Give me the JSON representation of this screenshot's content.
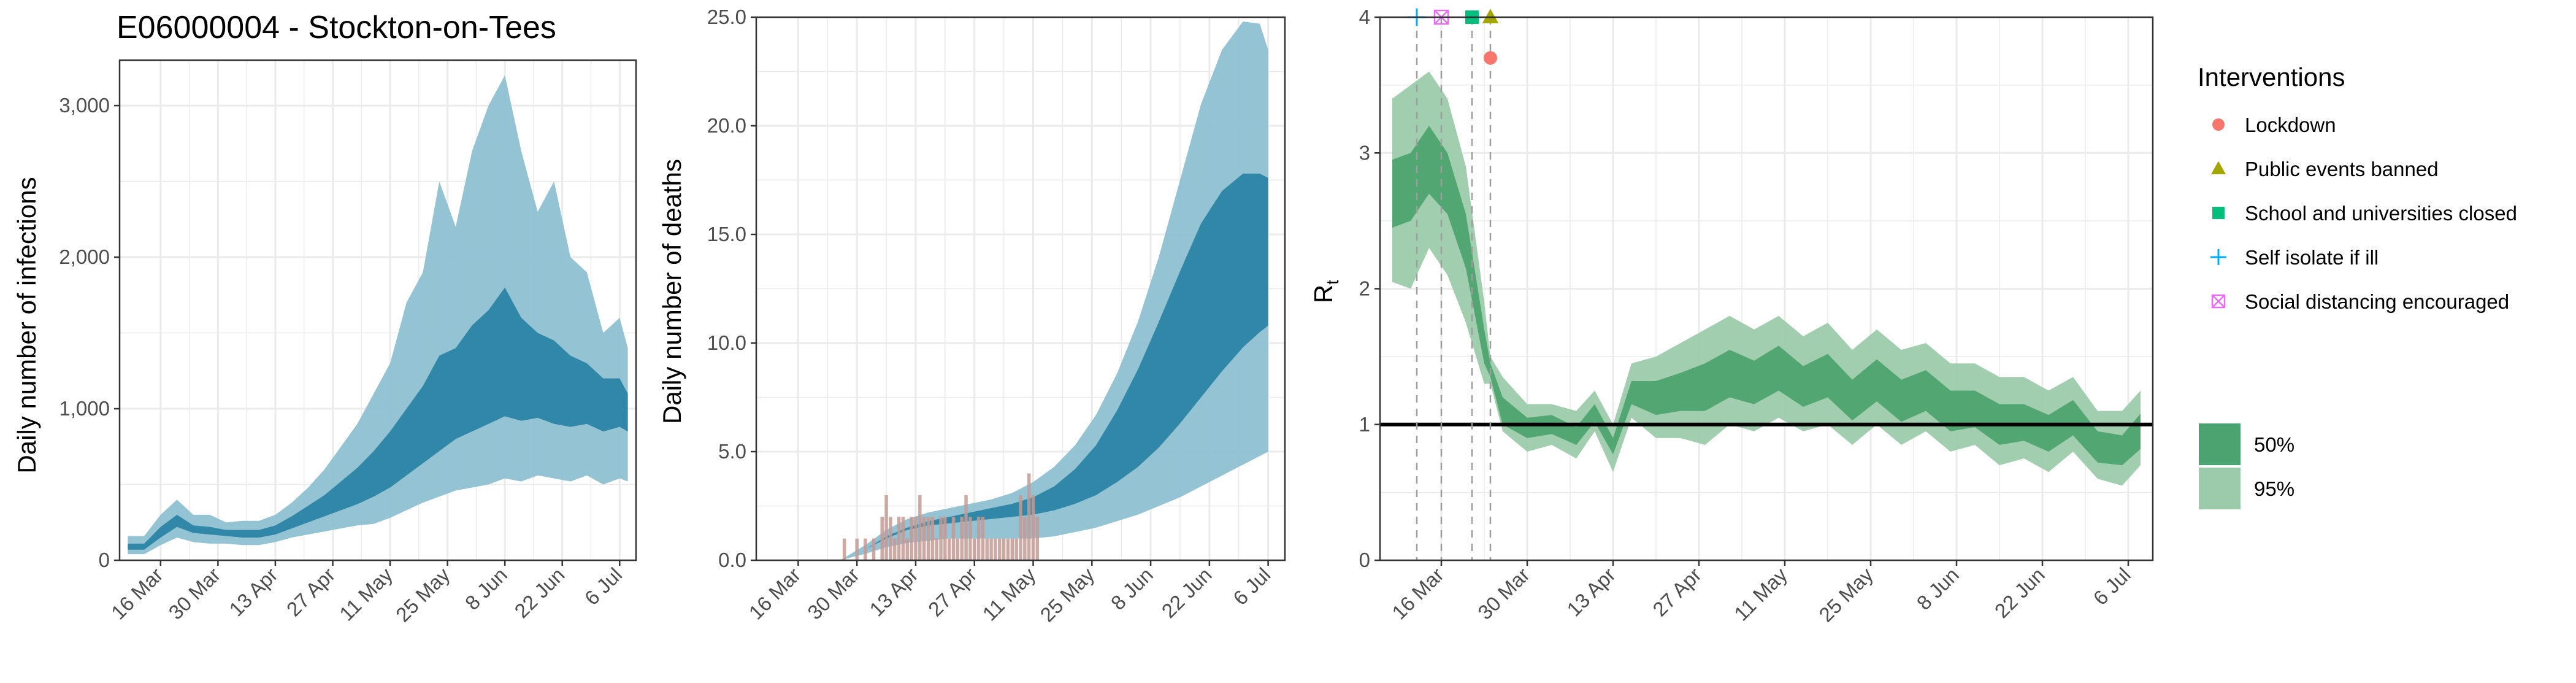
{
  "title": "E06000004 - Stockton-on-Tees",
  "date_ticks": [
    "16 Mar",
    "30 Mar",
    "13 Apr",
    "27 Apr",
    "11 May",
    "25 May",
    "8 Jun",
    "22 Jun",
    "6 Jul"
  ],
  "colors": {
    "infection_inner": "#2a84a4",
    "infection_outer": "#8ec0d2",
    "rt_inner": "#4da36f",
    "rt_outer": "#9bcbaa",
    "death_bar": "#c49a94",
    "grid": "#ebebeb",
    "lockdown": "#f8766d",
    "public_events": "#a3a500",
    "school": "#00bf7d",
    "self_isolate": "#00b0f6",
    "social_distancing": "#e76bf3"
  },
  "legend": {
    "title": "Interventions",
    "items": [
      {
        "key": "lockdown",
        "label": "Lockdown",
        "icon": "circle-icon"
      },
      {
        "key": "public_events",
        "label": "Public events banned",
        "icon": "triangle-icon"
      },
      {
        "key": "school",
        "label": "School and universities closed",
        "icon": "square-icon"
      },
      {
        "key": "self_isolate",
        "label": "Self isolate if ill",
        "icon": "plus-icon"
      },
      {
        "key": "social_distancing",
        "label": "Social distancing encouraged",
        "icon": "boxed-x-icon"
      }
    ],
    "ci_items": [
      {
        "label": "50%",
        "color": "#4da36f"
      },
      {
        "label": "95%",
        "color": "#9bcbaa"
      }
    ]
  },
  "chart_data": [
    {
      "type": "area",
      "title": "E06000004 - Stockton-on-Tees",
      "xlabel": "",
      "ylabel": "Daily number of infections",
      "ylim": [
        0,
        3300
      ],
      "yticks": [
        0,
        1000,
        2000,
        3000
      ],
      "ytick_labels": [
        "0",
        "1,000",
        "2,000",
        "3,000"
      ],
      "xlim": [
        "2020-03-06",
        "2020-07-10"
      ],
      "series": [
        {
          "band": "95%",
          "x": [
            "2020-03-08",
            "2020-03-12",
            "2020-03-16",
            "2020-03-20",
            "2020-03-24",
            "2020-03-28",
            "2020-04-01",
            "2020-04-05",
            "2020-04-09",
            "2020-04-13",
            "2020-04-17",
            "2020-04-21",
            "2020-04-25",
            "2020-04-29",
            "2020-05-03",
            "2020-05-07",
            "2020-05-11",
            "2020-05-15",
            "2020-05-19",
            "2020-05-23",
            "2020-05-27",
            "2020-05-31",
            "2020-06-04",
            "2020-06-08",
            "2020-06-12",
            "2020-06-16",
            "2020-06-20",
            "2020-06-24",
            "2020-06-28",
            "2020-07-02",
            "2020-07-06",
            "2020-07-08"
          ],
          "lower": [
            40,
            40,
            100,
            150,
            120,
            110,
            110,
            100,
            100,
            120,
            150,
            170,
            190,
            210,
            230,
            240,
            280,
            330,
            380,
            420,
            460,
            480,
            500,
            540,
            520,
            560,
            540,
            520,
            560,
            500,
            540,
            520
          ],
          "upper": [
            160,
            160,
            300,
            400,
            300,
            300,
            250,
            260,
            260,
            300,
            380,
            480,
            600,
            750,
            900,
            1100,
            1300,
            1700,
            1900,
            2500,
            2200,
            2700,
            3000,
            3200,
            2700,
            2300,
            2500,
            2000,
            1900,
            1500,
            1600,
            1400
          ]
        },
        {
          "band": "50%",
          "x": [
            "2020-03-08",
            "2020-03-12",
            "2020-03-16",
            "2020-03-20",
            "2020-03-24",
            "2020-03-28",
            "2020-04-01",
            "2020-04-05",
            "2020-04-09",
            "2020-04-13",
            "2020-04-17",
            "2020-04-21",
            "2020-04-25",
            "2020-04-29",
            "2020-05-03",
            "2020-05-07",
            "2020-05-11",
            "2020-05-15",
            "2020-05-19",
            "2020-05-23",
            "2020-05-27",
            "2020-05-31",
            "2020-06-04",
            "2020-06-08",
            "2020-06-12",
            "2020-06-16",
            "2020-06-20",
            "2020-06-24",
            "2020-06-28",
            "2020-07-02",
            "2020-07-06",
            "2020-07-08"
          ],
          "lower": [
            70,
            70,
            150,
            220,
            180,
            170,
            160,
            150,
            150,
            170,
            210,
            250,
            290,
            330,
            370,
            420,
            480,
            560,
            640,
            720,
            800,
            850,
            900,
            950,
            920,
            940,
            900,
            880,
            900,
            850,
            880,
            850
          ],
          "upper": [
            110,
            110,
            220,
            300,
            230,
            220,
            200,
            200,
            200,
            230,
            290,
            360,
            430,
            520,
            610,
            720,
            850,
            1000,
            1150,
            1350,
            1400,
            1550,
            1650,
            1800,
            1600,
            1500,
            1450,
            1350,
            1300,
            1200,
            1200,
            1100
          ]
        }
      ]
    },
    {
      "type": "area",
      "title": "",
      "xlabel": "",
      "ylabel": "Daily number of deaths",
      "ylim": [
        0,
        25
      ],
      "yticks": [
        0,
        5,
        10,
        15,
        20,
        25
      ],
      "ytick_labels": [
        "0.0",
        "5.0",
        "10.0",
        "15.0",
        "20.0",
        "25.0"
      ],
      "xlim": [
        "2020-03-06",
        "2020-07-10"
      ],
      "series": [
        {
          "band": "95%",
          "x": [
            "2020-03-26",
            "2020-04-01",
            "2020-04-06",
            "2020-04-11",
            "2020-04-16",
            "2020-04-21",
            "2020-04-26",
            "2020-05-01",
            "2020-05-06",
            "2020-05-11",
            "2020-05-16",
            "2020-05-21",
            "2020-05-26",
            "2020-05-31",
            "2020-06-05",
            "2020-06-10",
            "2020-06-15",
            "2020-06-20",
            "2020-06-25",
            "2020-06-30",
            "2020-07-04",
            "2020-07-06"
          ],
          "lower": [
            0,
            0.3,
            0.6,
            0.8,
            0.9,
            1.0,
            1.0,
            1.0,
            1.0,
            1.0,
            1.1,
            1.3,
            1.5,
            1.8,
            2.1,
            2.5,
            2.9,
            3.4,
            3.9,
            4.4,
            4.8,
            5.0
          ],
          "upper": [
            0,
            0.7,
            1.4,
            1.9,
            2.2,
            2.4,
            2.6,
            2.8,
            3.1,
            3.6,
            4.3,
            5.3,
            6.7,
            8.6,
            11.0,
            14.0,
            17.5,
            21.0,
            23.5,
            24.8,
            24.7,
            23.5
          ]
        },
        {
          "band": "50%",
          "x": [
            "2020-03-26",
            "2020-04-01",
            "2020-04-06",
            "2020-04-11",
            "2020-04-16",
            "2020-04-21",
            "2020-04-26",
            "2020-05-01",
            "2020-05-06",
            "2020-05-11",
            "2020-05-16",
            "2020-05-21",
            "2020-05-26",
            "2020-05-31",
            "2020-06-05",
            "2020-06-10",
            "2020-06-15",
            "2020-06-20",
            "2020-06-25",
            "2020-06-30",
            "2020-07-04",
            "2020-07-06"
          ],
          "lower": [
            0,
            0.5,
            1.0,
            1.4,
            1.6,
            1.7,
            1.8,
            1.9,
            2.0,
            2.1,
            2.3,
            2.6,
            3.0,
            3.6,
            4.3,
            5.2,
            6.3,
            7.5,
            8.7,
            9.8,
            10.5,
            10.8
          ],
          "upper": [
            0,
            0.5,
            1.1,
            1.5,
            1.8,
            2.0,
            2.2,
            2.4,
            2.6,
            2.9,
            3.4,
            4.2,
            5.3,
            6.9,
            8.8,
            11.0,
            13.3,
            15.5,
            17.0,
            17.8,
            17.8,
            17.6
          ]
        },
        {
          "name": "Observed deaths",
          "type": "bar",
          "x": [
            "2020-03-27",
            "2020-03-30",
            "2020-04-01",
            "2020-04-03",
            "2020-04-05",
            "2020-04-06",
            "2020-04-07",
            "2020-04-08",
            "2020-04-09",
            "2020-04-10",
            "2020-04-11",
            "2020-04-12",
            "2020-04-13",
            "2020-04-14",
            "2020-04-15",
            "2020-04-16",
            "2020-04-17",
            "2020-04-18",
            "2020-04-19",
            "2020-04-20",
            "2020-04-21",
            "2020-04-22",
            "2020-04-23",
            "2020-04-24",
            "2020-04-25",
            "2020-04-26",
            "2020-04-27",
            "2020-04-28",
            "2020-04-29",
            "2020-04-30",
            "2020-05-01",
            "2020-05-02",
            "2020-05-03",
            "2020-05-04",
            "2020-05-05",
            "2020-05-06",
            "2020-05-07",
            "2020-05-08",
            "2020-05-09",
            "2020-05-10",
            "2020-05-11",
            "2020-05-12"
          ],
          "values": [
            1,
            1,
            1,
            1,
            2,
            3,
            2,
            1,
            2,
            2,
            1,
            2,
            2,
            3,
            2,
            2,
            2,
            1,
            2,
            2,
            1,
            2,
            1,
            2,
            3,
            2,
            1,
            2,
            2,
            1,
            1,
            1,
            1,
            1,
            1,
            1,
            1,
            3,
            2,
            4,
            3,
            2
          ]
        }
      ]
    },
    {
      "type": "area",
      "title": "",
      "xlabel": "",
      "ylabel": "Rt",
      "ylim": [
        0,
        4
      ],
      "yticks": [
        0,
        1,
        2,
        3,
        4
      ],
      "ytick_labels": [
        "0",
        "1",
        "2",
        "3",
        "4"
      ],
      "xlim": [
        "2020-03-06",
        "2020-07-10"
      ],
      "reference_line": 1,
      "series": [
        {
          "band": "95%",
          "x": [
            "2020-03-08",
            "2020-03-11",
            "2020-03-14",
            "2020-03-17",
            "2020-03-20",
            "2020-03-23",
            "2020-03-24",
            "2020-03-26",
            "2020-03-30",
            "2020-04-03",
            "2020-04-07",
            "2020-04-10",
            "2020-04-13",
            "2020-04-16",
            "2020-04-20",
            "2020-04-24",
            "2020-04-28",
            "2020-05-02",
            "2020-05-06",
            "2020-05-10",
            "2020-05-14",
            "2020-05-18",
            "2020-05-22",
            "2020-05-26",
            "2020-05-30",
            "2020-06-03",
            "2020-06-07",
            "2020-06-11",
            "2020-06-15",
            "2020-06-19",
            "2020-06-23",
            "2020-06-27",
            "2020-07-01",
            "2020-07-05",
            "2020-07-08"
          ],
          "lower": [
            2.05,
            2.0,
            2.3,
            2.1,
            1.75,
            1.3,
            1.3,
            0.95,
            0.8,
            0.85,
            0.75,
            0.95,
            0.65,
            1.05,
            0.9,
            0.9,
            0.85,
            1.0,
            0.95,
            1.05,
            0.95,
            1.0,
            0.85,
            1.0,
            0.85,
            0.95,
            0.8,
            0.85,
            0.7,
            0.75,
            0.65,
            0.8,
            0.6,
            0.55,
            0.7
          ],
          "upper": [
            3.4,
            3.5,
            3.6,
            3.4,
            2.9,
            1.9,
            1.5,
            1.35,
            1.15,
            1.15,
            1.1,
            1.25,
            1.0,
            1.45,
            1.5,
            1.6,
            1.7,
            1.8,
            1.7,
            1.8,
            1.65,
            1.75,
            1.55,
            1.7,
            1.55,
            1.6,
            1.45,
            1.45,
            1.35,
            1.35,
            1.25,
            1.35,
            1.1,
            1.1,
            1.25
          ]
        },
        {
          "band": "50%",
          "x": [
            "2020-03-08",
            "2020-03-11",
            "2020-03-14",
            "2020-03-17",
            "2020-03-20",
            "2020-03-23",
            "2020-03-24",
            "2020-03-26",
            "2020-03-30",
            "2020-04-03",
            "2020-04-07",
            "2020-04-10",
            "2020-04-13",
            "2020-04-16",
            "2020-04-20",
            "2020-04-24",
            "2020-04-28",
            "2020-05-02",
            "2020-05-06",
            "2020-05-10",
            "2020-05-14",
            "2020-05-18",
            "2020-05-22",
            "2020-05-26",
            "2020-05-30",
            "2020-06-03",
            "2020-06-07",
            "2020-06-11",
            "2020-06-15",
            "2020-06-19",
            "2020-06-23",
            "2020-06-27",
            "2020-07-01",
            "2020-07-05",
            "2020-07-08"
          ],
          "lower": [
            2.45,
            2.5,
            2.7,
            2.55,
            2.15,
            1.45,
            1.35,
            1.0,
            0.9,
            0.93,
            0.85,
            1.02,
            0.78,
            1.15,
            1.07,
            1.1,
            1.1,
            1.2,
            1.15,
            1.25,
            1.13,
            1.2,
            1.03,
            1.17,
            1.02,
            1.1,
            0.95,
            0.98,
            0.85,
            0.88,
            0.8,
            0.92,
            0.72,
            0.7,
            0.82
          ],
          "upper": [
            2.95,
            3.0,
            3.2,
            3.0,
            2.55,
            1.7,
            1.45,
            1.2,
            1.05,
            1.07,
            0.98,
            1.15,
            0.9,
            1.32,
            1.32,
            1.38,
            1.45,
            1.55,
            1.47,
            1.58,
            1.43,
            1.52,
            1.33,
            1.48,
            1.33,
            1.4,
            1.25,
            1.25,
            1.15,
            1.15,
            1.07,
            1.18,
            0.95,
            0.92,
            1.08
          ]
        }
      ],
      "interventions": [
        {
          "key": "self_isolate",
          "label": "Self isolate if ill",
          "date": "2020-03-12",
          "y": 4.0
        },
        {
          "key": "social_distancing",
          "label": "Social distancing encouraged",
          "date": "2020-03-16",
          "y": 4.0
        },
        {
          "key": "school",
          "label": "School and universities closed",
          "date": "2020-03-21",
          "y": 4.0
        },
        {
          "key": "public_events",
          "label": "Public events banned",
          "date": "2020-03-24",
          "y": 4.0
        },
        {
          "key": "lockdown",
          "label": "Lockdown",
          "date": "2020-03-24",
          "y": 3.7
        }
      ]
    }
  ]
}
